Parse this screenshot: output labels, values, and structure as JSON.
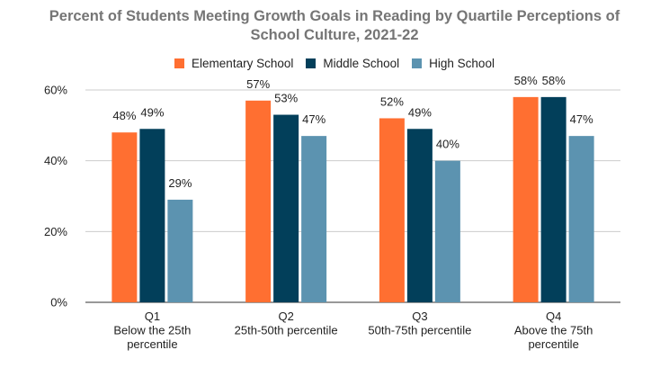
{
  "chart_data": {
    "type": "bar",
    "title_lines": [
      "Percent of Students Meeting Growth Goals in Reading by Quartile Perceptions of",
      "School Culture, 2021-22"
    ],
    "categories": [
      [
        "Q1",
        "Below the 25th",
        "percentile"
      ],
      [
        "Q2",
        "25th-50th percentile"
      ],
      [
        "Q3",
        "50th-75th percentile"
      ],
      [
        "Q4",
        "Above the 75th",
        "percentile"
      ]
    ],
    "series": [
      {
        "name": "Elementary School",
        "color": "#ff6f31",
        "values": [
          48,
          57,
          52,
          58
        ],
        "labels": [
          "48%",
          "57%",
          "52%",
          "58%"
        ]
      },
      {
        "name": "Middle School",
        "color": "#023f5a",
        "values": [
          49,
          53,
          49,
          58
        ],
        "labels": [
          "49%",
          "53%",
          "49%",
          "58%"
        ]
      },
      {
        "name": "High School",
        "color": "#5c93b0",
        "values": [
          29,
          47,
          40,
          47
        ],
        "labels": [
          "29%",
          "47%",
          "40%",
          "47%"
        ]
      }
    ],
    "yticks": [
      0,
      20,
      40,
      60
    ],
    "ytick_labels": [
      "0%",
      "20%",
      "40%",
      "60%"
    ],
    "ylim": [
      0,
      60
    ],
    "grid": true,
    "legend_position": "top"
  }
}
